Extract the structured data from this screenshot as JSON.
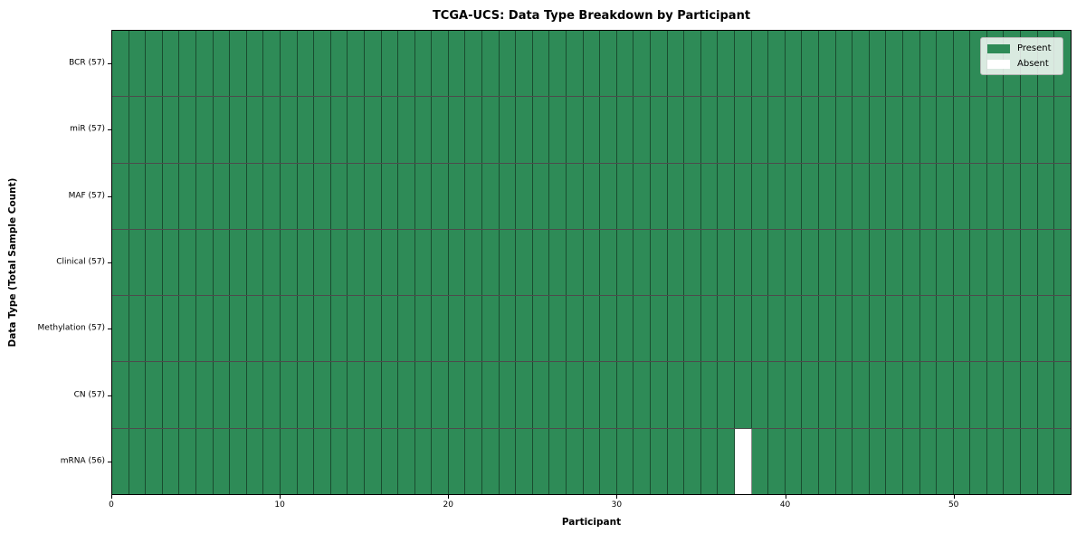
{
  "chart_data": {
    "type": "heatmap",
    "title": "TCGA-UCS: Data Type Breakdown by Participant",
    "xlabel": "Participant",
    "ylabel": "Data Type (Total Sample Count)",
    "x_ticks": [
      0,
      10,
      20,
      30,
      40,
      50
    ],
    "x_range": [
      0,
      57
    ],
    "n_participants": 57,
    "rows": [
      {
        "label": "BCR (57)",
        "name": "BCR",
        "total": 57,
        "absent": []
      },
      {
        "label": "miR (57)",
        "name": "miR",
        "total": 57,
        "absent": []
      },
      {
        "label": "MAF (57)",
        "name": "MAF",
        "total": 57,
        "absent": []
      },
      {
        "label": "Clinical (57)",
        "name": "Clinical",
        "total": 57,
        "absent": []
      },
      {
        "label": "Methylation (57)",
        "name": "Methylation",
        "total": 57,
        "absent": []
      },
      {
        "label": "CN (57)",
        "name": "CN",
        "total": 57,
        "absent": []
      },
      {
        "label": "mRNA (56)",
        "name": "mRNA",
        "total": 56,
        "absent": [
          37
        ]
      }
    ],
    "legend": {
      "position": "upper right",
      "entries": [
        {
          "label": "Present",
          "color": "#2e8b57"
        },
        {
          "label": "Absent",
          "color": "#ffffff"
        }
      ]
    },
    "colors": {
      "present": "#2e8b57",
      "absent": "#ffffff",
      "cell_edge": "rgba(0,0,0,0.45)",
      "spine": "#000000"
    }
  }
}
